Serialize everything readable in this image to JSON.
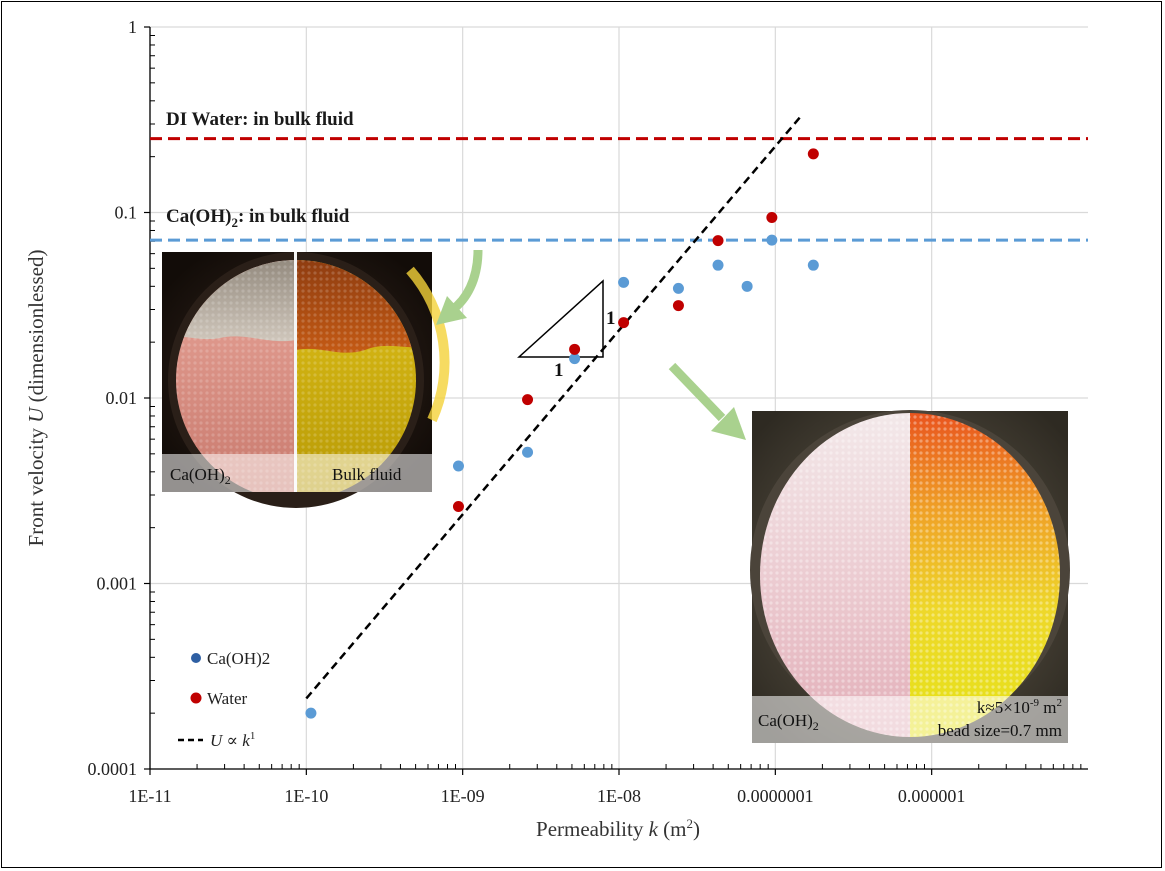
{
  "chart_data": {
    "type": "scatter",
    "x_scale": "log",
    "y_scale": "log",
    "xlim": [
      1e-11,
      1e-05
    ],
    "ylim": [
      0.0001,
      1
    ],
    "grid": true,
    "xlabel": {
      "prefix": "Permeability ",
      "var": "k",
      "suffix": " (m",
      "sup": "2",
      "close": ")"
    },
    "ylabel": {
      "prefix": "Front velocity ",
      "var": "U",
      "suffix": " (dimensionlessed)"
    },
    "x_ticks": [
      {
        "value": 1e-11,
        "label": "1E-11"
      },
      {
        "value": 1e-10,
        "label": "1E-10"
      },
      {
        "value": 1e-09,
        "label": "1E-09"
      },
      {
        "value": 1e-08,
        "label": "1E-08"
      },
      {
        "value": 1e-07,
        "label": "0.0000001"
      },
      {
        "value": 1e-06,
        "label": "0.000001"
      }
    ],
    "y_ticks": [
      {
        "value": 1,
        "label": "1"
      },
      {
        "value": 0.1,
        "label": "0.1"
      },
      {
        "value": 0.01,
        "label": "0.01"
      },
      {
        "value": 0.001,
        "label": "0.001"
      },
      {
        "value": 0.0001,
        "label": "0.0001"
      }
    ],
    "series": [
      {
        "name": "Ca(OH)2",
        "color": "#5b9bd5",
        "points": [
          [
            1.07e-10,
            0.0002
          ],
          [
            9.4e-10,
            0.0043
          ],
          [
            2.6e-09,
            0.0051
          ],
          [
            5.2e-09,
            0.0163
          ],
          [
            1.07e-08,
            0.042
          ],
          [
            2.4e-08,
            0.039
          ],
          [
            4.3e-08,
            0.052
          ],
          [
            6.6e-08,
            0.04
          ],
          [
            9.5e-08,
            0.071
          ],
          [
            1.75e-07,
            0.052
          ]
        ]
      },
      {
        "name": "Water",
        "color": "#c00000",
        "points": [
          [
            9.4e-10,
            0.0026
          ],
          [
            2.6e-09,
            0.0098
          ],
          [
            5.2e-09,
            0.0183
          ],
          [
            1.07e-08,
            0.0255
          ],
          [
            2.4e-08,
            0.0315
          ],
          [
            4.3e-08,
            0.0705
          ],
          [
            9.5e-08,
            0.094
          ],
          [
            1.75e-07,
            0.207
          ]
        ]
      }
    ],
    "fit_line": {
      "name_var_u": "U",
      "name_rel": " ∝ ",
      "name_var_k": "k",
      "name_sup": "1",
      "color": "#000000",
      "style": "dashed",
      "from": [
        1e-10,
        0.00024
      ],
      "to": [
        1.5e-07,
        0.34
      ]
    },
    "reference_lines": [
      {
        "value": 0.25,
        "color": "#c00000",
        "label": "DI Water: in bulk fluid"
      },
      {
        "value": 0.071,
        "color": "#5b9bd5",
        "label_main": "Ca(OH)",
        "label_sub": "2",
        "label_tail": ": in bulk fluid"
      }
    ],
    "slope_triangle": {
      "rise_label": "1",
      "run_label": "1"
    },
    "legend": {
      "placement": "bottom-left",
      "items": [
        {
          "label": "Ca(OH)2",
          "color": "#2e5fa3",
          "marker": "dot"
        },
        {
          "label": "Water",
          "color": "#c00000",
          "marker": "dot"
        },
        {
          "label_var_u": "U",
          "label_rel": " ∝ ",
          "label_var_k": "k",
          "label_sup": "1",
          "marker": "dashed"
        }
      ]
    }
  },
  "insets": {
    "left": {
      "left_caption_main": "Ca(OH)",
      "left_caption_sub": "2",
      "right_caption": "Bulk fluid"
    },
    "right": {
      "left_caption_main": "Ca(OH)",
      "left_caption_sub": "2",
      "k_text_pre": "k≈5×10",
      "k_text_exp": "-9",
      "k_text_unit": " m",
      "k_text_unit_sup": "2",
      "bead_text": "bead size=0.7 mm"
    }
  }
}
